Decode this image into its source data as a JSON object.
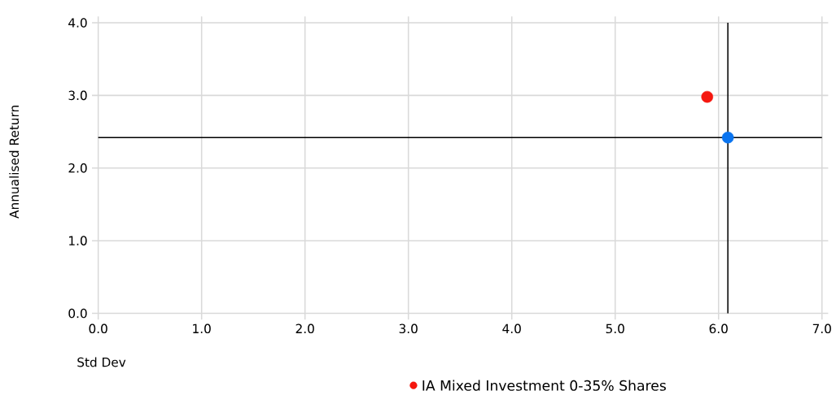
{
  "chart_data": {
    "type": "scatter",
    "xlabel": "Std Dev",
    "ylabel": "Annualised Return",
    "series": [
      {
        "color": "#0a74f0",
        "x": [
          6.09
        ],
        "values": [
          2.42
        ]
      },
      {
        "name": "IA Mixed Investment 0-35% Shares",
        "color": "#f5170f",
        "x": [
          5.89
        ],
        "values": [
          2.98
        ]
      }
    ],
    "xlim": [
      0,
      7
    ],
    "xticks": [
      {
        "value": 0,
        "label": "0.0"
      },
      {
        "value": 1,
        "label": "1.0"
      },
      {
        "value": 2,
        "label": "2.0"
      },
      {
        "value": 3,
        "label": "3.0"
      },
      {
        "value": 4,
        "label": "4.0"
      },
      {
        "value": 5,
        "label": "5.0"
      },
      {
        "value": 6,
        "label": "6.0"
      },
      {
        "value": 7,
        "label": "7.0"
      }
    ],
    "ylim": [
      0,
      4
    ],
    "yticks": [
      {
        "value": 0,
        "label": "0.0"
      },
      {
        "value": 1,
        "label": "1.0"
      },
      {
        "value": 2,
        "label": "2.0"
      },
      {
        "value": 3,
        "label": "3.0"
      },
      {
        "value": 4,
        "label": "4.0"
      }
    ],
    "ref_lines": [
      {
        "axis": "x",
        "value": 6.09,
        "color": "#000000"
      },
      {
        "axis": "y",
        "value": 2.42,
        "color": "#000000"
      }
    ],
    "grid": true,
    "legend": "bottom",
    "marker": "circle"
  }
}
